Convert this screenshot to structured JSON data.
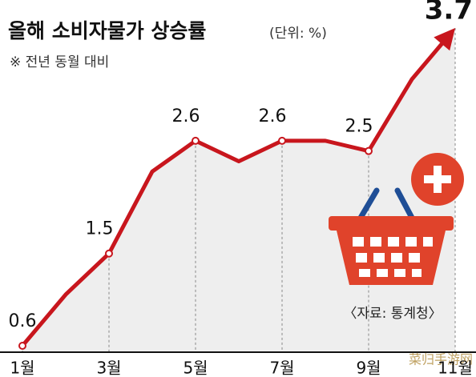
{
  "chart_data": {
    "type": "line",
    "title": "올해 소비자물가 상승률",
    "subtitle": "(단위: %)",
    "note": "※ 전년 동월 대비",
    "source": "〈자료: 통계청〉",
    "watermark": "菜归手游网",
    "categories": [
      "1월",
      null,
      "3월",
      null,
      "5월",
      null,
      "7월",
      null,
      "9월",
      null,
      "11월"
    ],
    "values": [
      0.6,
      1.1,
      1.5,
      2.3,
      2.6,
      2.4,
      2.6,
      2.6,
      2.5,
      3.2,
      3.7
    ],
    "color": "#c8161d"
  }
}
